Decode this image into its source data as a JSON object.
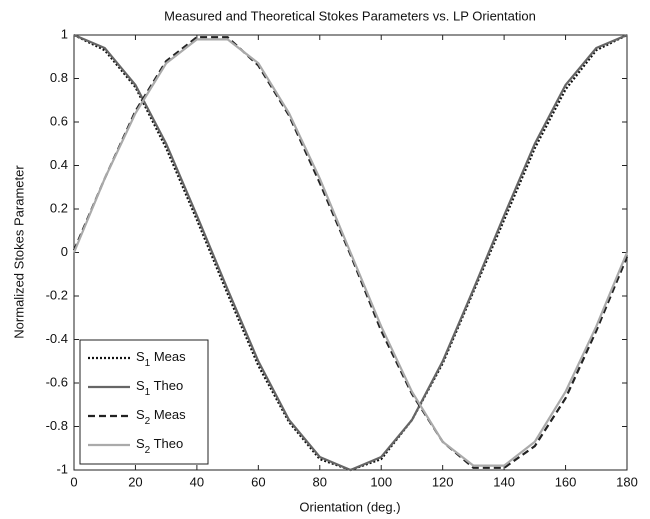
{
  "chart_data": {
    "type": "line",
    "title": "Measured and Theoretical Stokes Parameters vs. LP Orientation",
    "xlabel": "Orientation (deg.)",
    "ylabel": "Normalized Stokes Parameter",
    "x": [
      0,
      10,
      20,
      30,
      40,
      50,
      60,
      70,
      80,
      90,
      100,
      110,
      120,
      130,
      140,
      150,
      160,
      170,
      180
    ],
    "xlim": [
      0,
      180
    ],
    "xticks": [
      0,
      20,
      40,
      60,
      80,
      100,
      120,
      140,
      160,
      180
    ],
    "ylim": [
      -1,
      1
    ],
    "yticks": [
      -1,
      -0.8,
      -0.6,
      -0.4,
      -0.2,
      0,
      0.2,
      0.4,
      0.6,
      0.8,
      1
    ],
    "legend": "lower left",
    "series": [
      {
        "name": "S1 Meas",
        "color": "#111111",
        "dash": "2,2",
        "values": [
          1,
          0.93,
          0.76,
          0.48,
          0.15,
          -0.19,
          -0.52,
          -0.78,
          -0.95,
          -1.0,
          -0.95,
          -0.77,
          -0.51,
          -0.18,
          0.15,
          0.48,
          0.75,
          0.93,
          1
        ]
      },
      {
        "name": "S1 Theo",
        "color": "#666666",
        "dash": "",
        "values": [
          1,
          0.94,
          0.77,
          0.5,
          0.17,
          -0.17,
          -0.5,
          -0.77,
          -0.94,
          -1,
          -0.94,
          -0.77,
          -0.5,
          -0.17,
          0.17,
          0.5,
          0.77,
          0.94,
          1
        ]
      },
      {
        "name": "S2 Meas",
        "color": "#222222",
        "dash": "7,4",
        "values": [
          0.01,
          0.34,
          0.65,
          0.88,
          0.99,
          0.99,
          0.86,
          0.63,
          0.32,
          -0.01,
          -0.36,
          -0.65,
          -0.87,
          -0.99,
          -0.99,
          -0.89,
          -0.67,
          -0.36,
          -0.02
        ]
      },
      {
        "name": "S2 Theo",
        "color": "#aaaaaa",
        "dash": "",
        "values": [
          0,
          0.34,
          0.64,
          0.87,
          0.98,
          0.98,
          0.87,
          0.64,
          0.34,
          0,
          -0.34,
          -0.64,
          -0.87,
          -0.98,
          -0.98,
          -0.87,
          -0.64,
          -0.34,
          0
        ]
      }
    ]
  }
}
